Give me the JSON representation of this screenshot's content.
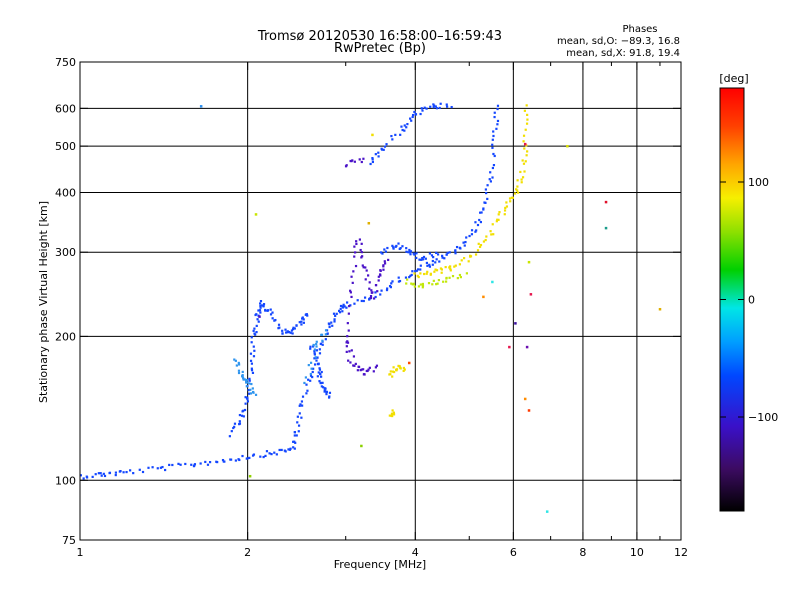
{
  "chart_data": {
    "type": "scatter",
    "title": "Tromsø 20120530 16:58:00–16:59:43",
    "subtitle": "RwPretec (Bp)",
    "xlabel": "Frequency [MHz]",
    "ylabel": "Stationary phase Virtual Height [km]",
    "x_scale": "log",
    "y_scale": "log",
    "xlim": [
      1,
      12
    ],
    "ylim": [
      75,
      750
    ],
    "x_ticks": [
      1,
      2,
      4,
      6,
      8,
      10,
      12
    ],
    "x_gridlines": [
      2,
      4,
      6,
      8,
      10
    ],
    "x_minor_ticks": [
      3,
      5,
      7,
      9,
      11
    ],
    "y_ticks": [
      75,
      100,
      200,
      300,
      400,
      500,
      600,
      750
    ],
    "y_gridlines": [
      100,
      200,
      300,
      400,
      500,
      600
    ],
    "grid": true,
    "phases_info": {
      "title": "Phases",
      "line1": "mean, sd,O: −89.3, 16.8",
      "line2": "mean, sd,X:  91.8, 19.4"
    },
    "colorbar": {
      "label": "[deg]",
      "range": [
        -180,
        180
      ],
      "ticks": [
        {
          "value": 100,
          "label": "100"
        },
        {
          "value": 0,
          "label": "0"
        },
        {
          "value": -100,
          "label": "−100"
        }
      ]
    },
    "series": [
      {
        "color": "#1447ff",
        "segments": [
          [
            [
              1.0,
              102
            ],
            [
              1.1,
              103
            ],
            [
              1.2,
              104
            ],
            [
              1.4,
              106
            ],
            [
              1.6,
              108
            ],
            [
              1.8,
              110
            ],
            [
              2.0,
              112
            ],
            [
              2.2,
              114
            ],
            [
              2.4,
              116
            ],
            [
              2.45,
              125
            ],
            [
              2.5,
              145
            ],
            [
              2.6,
              165
            ],
            [
              2.7,
              190
            ],
            [
              2.8,
              210
            ],
            [
              2.9,
              225
            ],
            [
              3.0,
              232
            ],
            [
              3.3,
              240
            ],
            [
              3.6,
              255
            ],
            [
              3.9,
              270
            ],
            [
              4.2,
              282
            ],
            [
              4.5,
              292
            ],
            [
              4.8,
              305
            ],
            [
              5.1,
              330
            ],
            [
              5.3,
              370
            ],
            [
              5.45,
              430
            ],
            [
              5.55,
              520
            ],
            [
              5.6,
              610
            ]
          ],
          [
            [
              1.85,
              125
            ],
            [
              1.95,
              135
            ],
            [
              2.0,
              148
            ],
            [
              2.03,
              170
            ],
            [
              2.05,
              200
            ],
            [
              2.08,
              220
            ],
            [
              2.12,
              235
            ],
            [
              2.18,
              225
            ],
            [
              2.3,
              205
            ],
            [
              2.4,
              205
            ],
            [
              2.5,
              215
            ],
            [
              2.55,
              225
            ]
          ],
          [
            [
              2.6,
              190
            ],
            [
              2.65,
              178
            ],
            [
              2.7,
              165
            ],
            [
              2.75,
              155
            ],
            [
              2.8,
              150
            ]
          ],
          [
            [
              3.5,
              300
            ],
            [
              3.7,
              310
            ],
            [
              3.9,
              300
            ],
            [
              4.1,
              290
            ],
            [
              4.4,
              298
            ]
          ],
          [
            [
              3.3,
              458
            ],
            [
              3.5,
              495
            ],
            [
              3.8,
              545
            ],
            [
              4.0,
              585
            ],
            [
              4.3,
              605
            ],
            [
              4.6,
              608
            ]
          ]
        ]
      },
      {
        "color": "#4a12c8",
        "segments": [
          [
            [
              3.0,
              180
            ],
            [
              3.05,
              250
            ],
            [
              3.15,
              320
            ],
            [
              3.25,
              280
            ],
            [
              3.35,
              240
            ],
            [
              3.45,
              270
            ],
            [
              3.55,
              290
            ]
          ],
          [
            [
              3.0,
              200
            ],
            [
              3.1,
              175
            ],
            [
              3.25,
              168
            ],
            [
              3.4,
              172
            ]
          ],
          [
            [
              3.0,
              458
            ],
            [
              3.2,
              470
            ]
          ]
        ]
      },
      {
        "color": "#2f95ee",
        "segments": [
          [
            [
              1.9,
              180
            ],
            [
              1.95,
              165
            ],
            [
              2.0,
              160
            ],
            [
              2.05,
              150
            ]
          ],
          [
            [
              2.55,
              160
            ],
            [
              2.65,
              190
            ],
            [
              2.75,
              205
            ]
          ]
        ]
      },
      {
        "color": "#f2df00",
        "segments": [
          [
            [
              4.0,
              268
            ],
            [
              4.3,
              272
            ],
            [
              4.6,
              278
            ],
            [
              5.0,
              292
            ],
            [
              5.4,
              320
            ],
            [
              5.7,
              360
            ],
            [
              6.0,
              390
            ],
            [
              6.2,
              430
            ],
            [
              6.3,
              500
            ],
            [
              6.35,
              610
            ]
          ],
          [
            [
              3.6,
              165
            ],
            [
              3.7,
              172
            ],
            [
              3.8,
              170
            ]
          ],
          [
            [
              3.6,
              135
            ],
            [
              3.65,
              140
            ]
          ]
        ]
      },
      {
        "color": "#c2e80a",
        "segments": [
          [
            [
              3.85,
              260
            ],
            [
              4.1,
              255
            ],
            [
              4.5,
              262
            ],
            [
              4.9,
              270
            ]
          ]
        ]
      }
    ],
    "stray_points": [
      {
        "x": 1.65,
        "y": 606,
        "color": "#2a8ff0"
      },
      {
        "x": 2.07,
        "y": 360,
        "color": "#c9e500"
      },
      {
        "x": 2.02,
        "y": 102,
        "color": "#8fd100"
      },
      {
        "x": 2.1,
        "y": 220,
        "color": "#4a12c8"
      },
      {
        "x": 3.2,
        "y": 118,
        "color": "#8bd000"
      },
      {
        "x": 3.3,
        "y": 345,
        "color": "#e0b000"
      },
      {
        "x": 3.35,
        "y": 528,
        "color": "#f2df00"
      },
      {
        "x": 3.9,
        "y": 176,
        "color": "#ff4a00"
      },
      {
        "x": 5.3,
        "y": 242,
        "color": "#ff8c00"
      },
      {
        "x": 5.9,
        "y": 190,
        "color": "#e6174f"
      },
      {
        "x": 6.05,
        "y": 213,
        "color": "#3a0f9e"
      },
      {
        "x": 6.4,
        "y": 286,
        "color": "#c9e500"
      },
      {
        "x": 6.35,
        "y": 190,
        "color": "#6b0fb0"
      },
      {
        "x": 6.3,
        "y": 148,
        "color": "#ff8c00"
      },
      {
        "x": 6.4,
        "y": 140,
        "color": "#ff3a00"
      },
      {
        "x": 6.3,
        "y": 505,
        "color": "#e6174f"
      },
      {
        "x": 6.45,
        "y": 245,
        "color": "#e6174f"
      },
      {
        "x": 6.9,
        "y": 86,
        "color": "#2fe6e6"
      },
      {
        "x": 7.5,
        "y": 500,
        "color": "#d8e000"
      },
      {
        "x": 8.8,
        "y": 382,
        "color": "#e0102a"
      },
      {
        "x": 8.8,
        "y": 337,
        "color": "#1a9c8a"
      },
      {
        "x": 11.0,
        "y": 228,
        "color": "#e0b000"
      },
      {
        "x": 5.5,
        "y": 260,
        "color": "#2fe6e6"
      }
    ]
  }
}
